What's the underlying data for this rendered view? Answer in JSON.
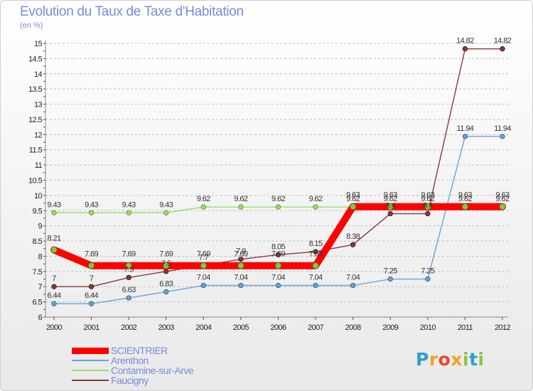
{
  "chart_data": {
    "type": "line",
    "title": "Evolution du Taux de Taxe d'Habitation",
    "unit": "(en %)",
    "x": [
      "2000",
      "2001",
      "2002",
      "2003",
      "2004",
      "2005",
      "2006",
      "2007",
      "2008",
      "2009",
      "2010",
      "2011",
      "2012"
    ],
    "ylim": [
      6,
      15
    ],
    "y_ticks": [
      "6",
      "6.5",
      "7",
      "7.5",
      "8",
      "8.5",
      "9",
      "9.5",
      "10",
      "10.5",
      "11",
      "11.5",
      "12",
      "12.5",
      "13",
      "13.5",
      "14",
      "14.5",
      "15"
    ],
    "grid": "horizontal dashed",
    "legend_position": "bottom-left",
    "series": [
      {
        "name": "SCIENTRIER",
        "color": "#ff0000",
        "values": [
          8.21,
          7.69,
          7.69,
          7.69,
          7.69,
          7.69,
          7.69,
          7.69,
          9.63,
          9.63,
          9.63,
          9.63,
          9.63
        ],
        "labels": [
          "8.21",
          "7.69",
          "7.69",
          "7.69",
          "7.69",
          "7.69",
          "7.69",
          "7.69",
          "9.63",
          "9.63",
          "9.63",
          "9.63",
          "9.63"
        ]
      },
      {
        "name": "Arenthon",
        "color": "#6ba3d6",
        "values": [
          6.44,
          6.44,
          6.63,
          6.83,
          7.04,
          7.04,
          7.04,
          7.04,
          7.04,
          7.25,
          7.25,
          11.94,
          11.94
        ],
        "labels": [
          "6.44",
          "6.44",
          "6.63",
          "6.83",
          "7.04",
          "7.04",
          "7.04",
          "7.04",
          "7.04",
          "7.25",
          "7.25",
          "11.94",
          "11.94"
        ]
      },
      {
        "name": "Contamine-sur-Arve",
        "color": "#9cdc6c",
        "values": [
          9.43,
          9.43,
          9.43,
          9.43,
          9.62,
          9.62,
          9.62,
          9.62,
          9.62,
          9.62,
          9.62,
          9.62,
          9.62
        ],
        "labels": [
          "9.43",
          "9.43",
          "9.43",
          "9.43",
          "9.62",
          "9.62",
          "9.62",
          "9.62",
          "9.62",
          "9.62",
          "9.62",
          "9.62",
          "9.62"
        ]
      },
      {
        "name": "Faucigny",
        "color": "#8a3a3a",
        "values": [
          7,
          7,
          7.3,
          7.5,
          7.7,
          7.9,
          8.05,
          8.15,
          8.38,
          9.4,
          9.4,
          14.82,
          14.82
        ],
        "labels": [
          "7",
          "7",
          "7.3",
          "7.5",
          "7.7",
          "7.9",
          "8.05",
          "8.15",
          "8.38",
          "9.4",
          "9.4",
          "14.82",
          "14.82"
        ]
      }
    ]
  },
  "branding": {
    "logo_letters": [
      {
        "ch": "P",
        "color": "#2c9fd8"
      },
      {
        "ch": "r",
        "color": "#f2a321"
      },
      {
        "ch": "o",
        "color": "#e8452c"
      },
      {
        "ch": "x",
        "color": "#f2a321"
      },
      {
        "ch": "i",
        "color": "#8bc53f"
      },
      {
        "ch": "t",
        "color": "#2c9fd8"
      },
      {
        "ch": "i",
        "color": "#8bc53f"
      }
    ]
  }
}
